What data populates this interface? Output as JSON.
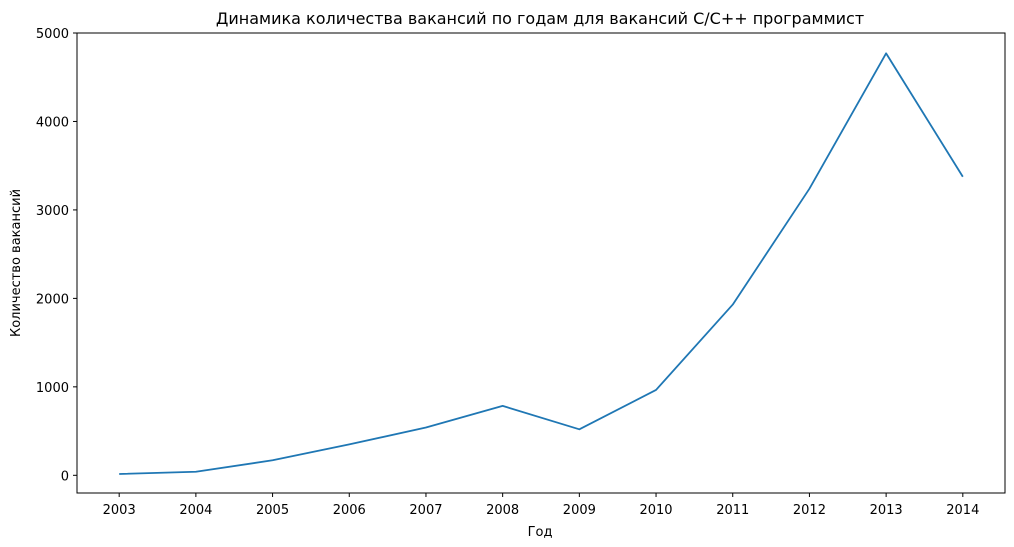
{
  "chart_data": {
    "type": "line",
    "title": "Динамика количества вакансий по годам для вакансий C/C++ программист",
    "xlabel": "Год",
    "ylabel": "Количество вакансий",
    "x": [
      2003,
      2004,
      2005,
      2006,
      2007,
      2008,
      2009,
      2010,
      2011,
      2012,
      2013,
      2014
    ],
    "series": [
      {
        "values": [
          15,
          40,
          170,
          350,
          540,
          785,
          520,
          965,
          1930,
          3240,
          4770,
          3375
        ],
        "color": "#1f77b4"
      }
    ],
    "xticks": [
      "2003",
      "2004",
      "2005",
      "2006",
      "2007",
      "2008",
      "2009",
      "2010",
      "2011",
      "2012",
      "2013",
      "2014"
    ],
    "yticks": [
      0,
      1000,
      2000,
      3000,
      4000,
      5000
    ],
    "ylim": [
      -200,
      5000
    ],
    "xlim": [
      2002.45,
      2014.55
    ],
    "grid": false,
    "legend": "none"
  }
}
